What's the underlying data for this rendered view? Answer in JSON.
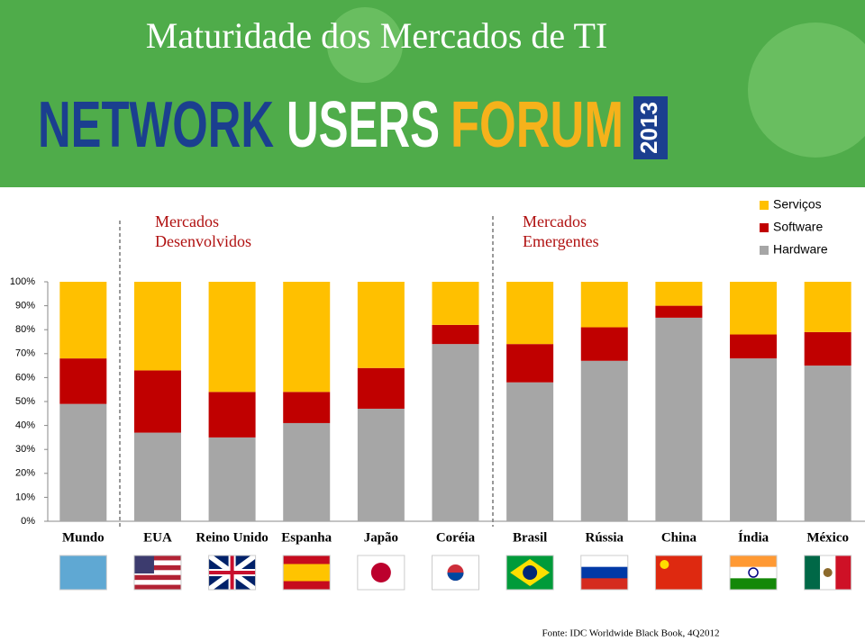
{
  "header": {
    "title": "Maturidade dos Mercados de TI",
    "logo": [
      "NETWORK",
      "USERS",
      "FORUM",
      "2013"
    ]
  },
  "chart_data": {
    "type": "stacked_bar",
    "categories": [
      "Mundo",
      "EUA",
      "Reino Unido",
      "Espanha",
      "Japão",
      "Coréia",
      "Brasil",
      "Rússia",
      "China",
      "Índia",
      "México"
    ],
    "series": [
      {
        "name": "Hardware",
        "color": "#a6a6a6",
        "values": [
          49,
          37,
          35,
          41,
          47,
          74,
          58,
          67,
          85,
          68,
          65
        ]
      },
      {
        "name": "Software",
        "color": "#c00000",
        "values": [
          19,
          26,
          19,
          13,
          17,
          8,
          16,
          14,
          5,
          10,
          14
        ]
      },
      {
        "name": "Serviços",
        "color": "#ffc000",
        "values": [
          32,
          37,
          46,
          46,
          36,
          18,
          26,
          19,
          10,
          22,
          21
        ]
      }
    ],
    "ylim": [
      0,
      100
    ],
    "yticks": [
      {
        "value": 0,
        "label": "0%"
      },
      {
        "value": 10,
        "label": "10%"
      },
      {
        "value": 20,
        "label": "20%"
      },
      {
        "value": 30,
        "label": "30%"
      },
      {
        "value": 40,
        "label": "40%"
      },
      {
        "value": 50,
        "label": "50%"
      },
      {
        "value": 60,
        "label": "60%"
      },
      {
        "value": 70,
        "label": "70%"
      },
      {
        "value": 80,
        "label": "80%"
      },
      {
        "value": 90,
        "label": "90%"
      },
      {
        "value": 100,
        "label": "100%"
      }
    ],
    "annotations": [
      {
        "lines": [
          "Mercados",
          "Desenvolvidos"
        ]
      },
      {
        "lines": [
          "Mercados",
          "Emergentes"
        ]
      }
    ],
    "legend": "top-right",
    "source": "Fonte: IDC Worldwide Black Book, 4Q2012"
  }
}
